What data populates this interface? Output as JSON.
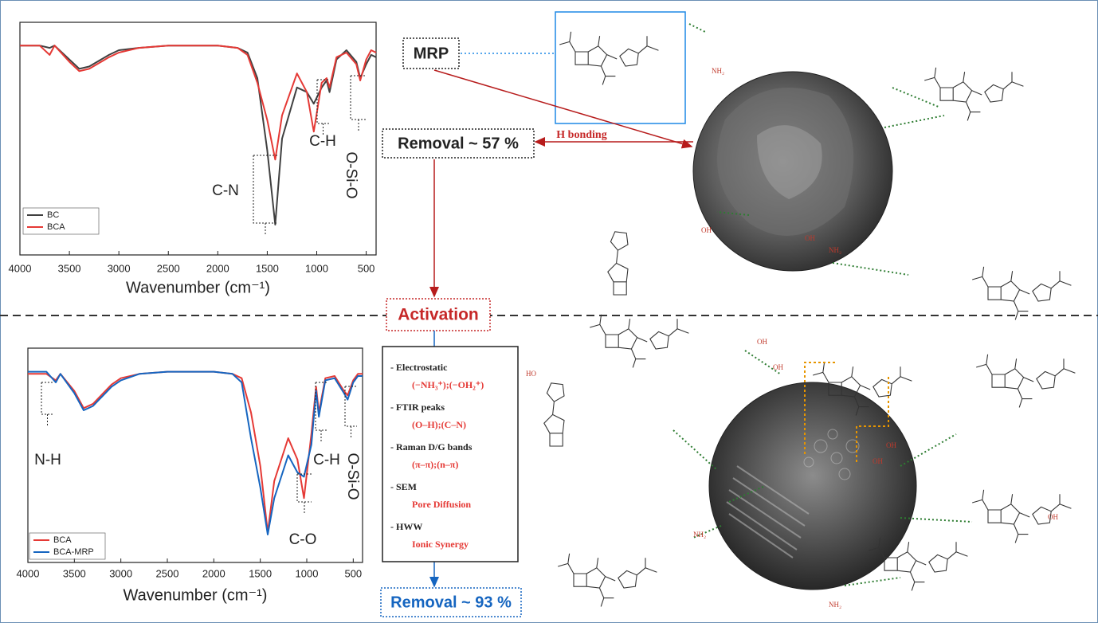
{
  "chart_data": [
    {
      "type": "line",
      "xlabel": "Wavenumber (cm⁻¹)",
      "x": [
        4000,
        3800,
        3700,
        3650,
        3500,
        3400,
        3300,
        3100,
        3000,
        2800,
        2500,
        2000,
        1800,
        1700,
        1600,
        1500,
        1420,
        1350,
        1200,
        1100,
        1030,
        950,
        900,
        870,
        800,
        700,
        600,
        560,
        500,
        450,
        400
      ],
      "series": [
        {
          "name": "BC",
          "color": "#404040",
          "values": [
            90,
            90,
            89,
            90,
            84,
            80,
            81,
            86,
            88,
            89,
            90,
            90,
            89,
            87,
            76,
            45,
            13,
            50,
            72,
            70,
            65,
            72,
            75,
            70,
            84,
            88,
            83,
            76,
            82,
            86,
            85
          ]
        },
        {
          "name": "BCA",
          "color": "#e53935",
          "values": [
            90,
            90,
            86,
            90,
            83,
            79,
            80,
            85,
            87,
            89,
            90,
            90,
            89,
            86,
            74,
            58,
            41,
            60,
            78,
            70,
            53,
            74,
            76,
            72,
            85,
            87,
            82,
            75,
            84,
            88,
            87
          ]
        }
      ],
      "xlim": [
        4000,
        400
      ],
      "xticks": [
        4000,
        3500,
        3000,
        2500,
        2000,
        1500,
        1000,
        500
      ],
      "ylim": [
        0,
        100
      ],
      "annotations": [
        "C-N",
        "C-H",
        "O-Si-O"
      ]
    },
    {
      "type": "line",
      "xlabel": "Wavenumber (cm⁻¹)",
      "x": [
        4000,
        3800,
        3700,
        3650,
        3500,
        3400,
        3300,
        3100,
        3000,
        2800,
        2500,
        2000,
        1800,
        1700,
        1600,
        1500,
        1420,
        1350,
        1200,
        1100,
        1030,
        950,
        900,
        870,
        800,
        700,
        600,
        560,
        500,
        450,
        400
      ],
      "series": [
        {
          "name": "BCA",
          "color": "#e53935",
          "values": [
            88,
            88,
            85,
            88,
            80,
            72,
            74,
            83,
            86,
            88,
            89,
            89,
            88,
            86,
            70,
            45,
            14,
            38,
            58,
            48,
            30,
            60,
            82,
            70,
            86,
            87,
            80,
            78,
            85,
            88,
            88
          ]
        },
        {
          "name": "BCA-MRP",
          "color": "#1565c0",
          "values": [
            89,
            89,
            84,
            88,
            79,
            71,
            73,
            82,
            85,
            88,
            89,
            89,
            88,
            84,
            58,
            35,
            13,
            30,
            50,
            42,
            40,
            55,
            80,
            68,
            85,
            86,
            79,
            76,
            84,
            87,
            87
          ]
        }
      ],
      "xlim": [
        4000,
        400
      ],
      "xticks": [
        4000,
        3500,
        3000,
        2500,
        2000,
        1500,
        1000,
        500
      ],
      "ylim": [
        0,
        100
      ],
      "annotations": [
        "N-H",
        "C-O",
        "C-H",
        "O-Si-O"
      ]
    }
  ],
  "labels": {
    "mrp": "MRP",
    "removal_1": "Removal ~ 57 %",
    "h_bonding": "H bonding",
    "activation": "Activation",
    "removal_2": "Removal ~ 93 %"
  },
  "mechanisms": [
    {
      "heading": "- Electrostatic",
      "detail": "(−NH₃⁺);(−OH₂⁺)"
    },
    {
      "heading": "- FTIR peaks",
      "detail": "(O–H);(C–N)"
    },
    {
      "heading": "- Raman D/G bands",
      "detail": "(π–π);(n–π)"
    },
    {
      "heading": "- SEM",
      "detail": "Pore Diffusion"
    },
    {
      "heading": "- HWW",
      "detail": "Ionic Synergy"
    }
  ],
  "molecule_labels": [
    "NH₂",
    "OH",
    "OH",
    "NH₂",
    "OH",
    "OH",
    "HO",
    "NH₂",
    "OH",
    "NH₂",
    "OH",
    "OH"
  ]
}
